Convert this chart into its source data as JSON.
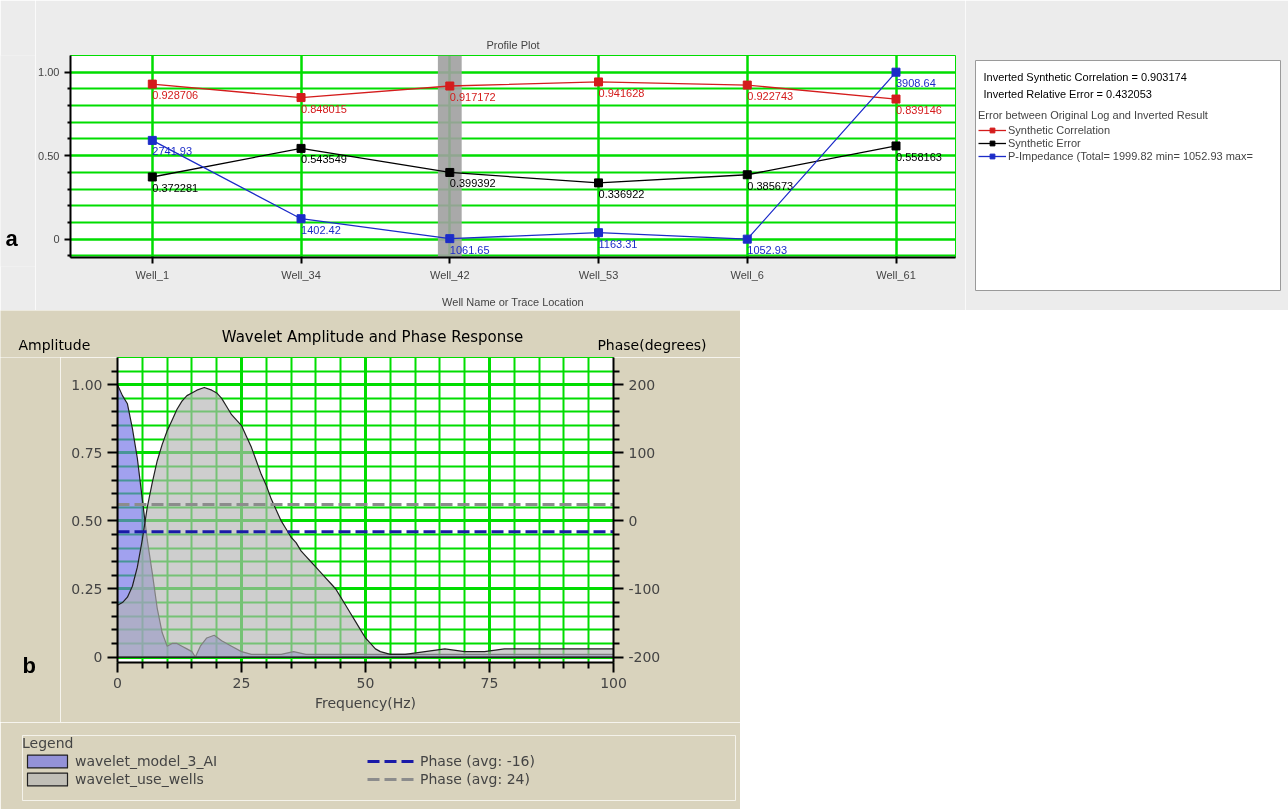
{
  "chart_data": [
    {
      "type": "line",
      "title": "Profile Plot",
      "xlabel": "Well Name or Trace Location",
      "legend_title": "Error between Original Log and Inverted Result",
      "annotations": [
        "Inverted Synthetic Correlation = 0.903174",
        "Inverted Relative Error = 0.432053",
        "a"
      ],
      "categories": [
        "Well_1",
        "Well_34",
        "Well_42",
        "Well_53",
        "Well_6",
        "Well_61"
      ],
      "series": [
        {
          "name": "Synthetic Correlation",
          "color": "#d41c1c",
          "values": [
            0.928706,
            0.848015,
            0.917172,
            0.941628,
            0.922743,
            0.839146
          ]
        },
        {
          "name": "Synthetic Error",
          "color": "#000000",
          "values": [
            0.372281,
            0.543549,
            0.399392,
            0.336922,
            0.385673,
            0.558163
          ]
        },
        {
          "name": "P-Impedance (Total= 1999.82 min= 1052.93 max=",
          "color": "#1c2cc8",
          "axis": "y2",
          "values": [
            2741.93,
            1402.42,
            1061.65,
            1163.31,
            1052.93,
            3908.64
          ]
        }
      ],
      "data_labels": true,
      "ylim": [
        -0.11,
        1.1
      ],
      "yticks": [
        {
          "value": -0.1,
          "label": null
        },
        0,
        {
          "value": 0.1,
          "label": null
        },
        {
          "value": 0.2,
          "label": null
        },
        {
          "value": 0.3,
          "label": null
        },
        {
          "value": 0.4,
          "label": null
        },
        {
          "value": 0.5,
          "label": "0.50"
        },
        {
          "value": 0.6,
          "label": null
        },
        {
          "value": 0.7,
          "label": null
        },
        {
          "value": 0.8,
          "label": null
        },
        {
          "value": 0.9,
          "label": null
        },
        {
          "value": 1,
          "label": "1.00"
        }
      ],
      "y2lim": [
        739,
        4194
      ],
      "bands": [
        {
          "axis": "x",
          "from": "Well_42",
          "to": "Well_42",
          "color": "#a0a0a0"
        }
      ],
      "grid": true,
      "legend": "right",
      "marker": "square"
    },
    {
      "type": "area",
      "title": "Wavelet Amplitude and Phase Response",
      "xlabel": "Frequency(Hz)",
      "ylabel": "Amplitude",
      "y2label": "Phase(degrees)",
      "legend_title": "Legend",
      "annotations": [
        "b"
      ],
      "series": [
        {
          "name": "wavelet_model_3_AI",
          "color": "#6e6ee6",
          "x": [
            0,
            1,
            2,
            3,
            4,
            5,
            6,
            7,
            8,
            9,
            10,
            11,
            12,
            13,
            14,
            15,
            15.7,
            16.7,
            18,
            19.5,
            21,
            23,
            25,
            27,
            30,
            33,
            35.5,
            38,
            41,
            45,
            50,
            60,
            70,
            80,
            90,
            100
          ],
          "values": [
            1.0,
            0.96,
            0.93,
            0.84,
            0.73,
            0.58,
            0.43,
            0.31,
            0.18,
            0.09,
            0.04,
            0.05,
            0.05,
            0.04,
            0.03,
            0.02,
            0.0,
            0.04,
            0.07,
            0.08,
            0.06,
            0.04,
            0.02,
            0.01,
            0.01,
            0.01,
            0.02,
            0.01,
            0.01,
            0.01,
            0.01,
            0.01,
            0.01,
            0.01,
            0.01,
            0.01
          ]
        },
        {
          "name": "wavelet_use_wells",
          "color": "#b4b4b4",
          "x": [
            0,
            1,
            2,
            3,
            4,
            5,
            6,
            7,
            8,
            9,
            10,
            11,
            12,
            13,
            14,
            15,
            16,
            17.5,
            19,
            20,
            21,
            22,
            23,
            24,
            25,
            26,
            27,
            28,
            29,
            30,
            31,
            32,
            33,
            34,
            35,
            36,
            37,
            38,
            39,
            40,
            41,
            42,
            43,
            44,
            45,
            46,
            47,
            48,
            49,
            50,
            51,
            52,
            53,
            55,
            58,
            62,
            66,
            70,
            74,
            78,
            82,
            86,
            90,
            95,
            100
          ],
          "values": [
            0.19,
            0.2,
            0.22,
            0.26,
            0.33,
            0.43,
            0.55,
            0.64,
            0.72,
            0.78,
            0.83,
            0.87,
            0.91,
            0.94,
            0.96,
            0.97,
            0.98,
            0.99,
            0.98,
            0.97,
            0.95,
            0.92,
            0.89,
            0.87,
            0.85,
            0.81,
            0.77,
            0.72,
            0.67,
            0.63,
            0.58,
            0.54,
            0.5,
            0.47,
            0.44,
            0.42,
            0.39,
            0.37,
            0.35,
            0.33,
            0.31,
            0.29,
            0.27,
            0.25,
            0.22,
            0.19,
            0.16,
            0.13,
            0.1,
            0.07,
            0.05,
            0.03,
            0.02,
            0.01,
            0.01,
            0.02,
            0.03,
            0.02,
            0.02,
            0.03,
            0.03,
            0.03,
            0.03,
            0.03,
            0.03
          ]
        }
      ],
      "xlim": [
        0,
        100
      ],
      "xticks": [
        0,
        {
          "value": 5,
          "label": null
        },
        {
          "value": 10,
          "label": null
        },
        {
          "value": 15,
          "label": null
        },
        {
          "value": 20,
          "label": null
        },
        25,
        {
          "value": 30,
          "label": null
        },
        {
          "value": 35,
          "label": null
        },
        {
          "value": 40,
          "label": null
        },
        {
          "value": 45,
          "label": null
        },
        50,
        {
          "value": 55,
          "label": null
        },
        {
          "value": 60,
          "label": null
        },
        {
          "value": 65,
          "label": null
        },
        {
          "value": 70,
          "label": null
        },
        75,
        {
          "value": 80,
          "label": null
        },
        {
          "value": 85,
          "label": null
        },
        {
          "value": 90,
          "label": null
        },
        {
          "value": 95,
          "label": null
        },
        100
      ],
      "ylim": [
        -0.02,
        1.1
      ],
      "yticks": [
        0,
        {
          "value": 0.05,
          "label": null
        },
        {
          "value": 0.1,
          "label": null
        },
        {
          "value": 0.15,
          "label": null
        },
        {
          "value": 0.2,
          "label": null
        },
        0.25,
        {
          "value": 0.3,
          "label": null
        },
        {
          "value": 0.35,
          "label": null
        },
        {
          "value": 0.4,
          "label": null
        },
        {
          "value": 0.45,
          "label": null
        },
        {
          "value": 0.5,
          "label": "0.50"
        },
        {
          "value": 0.55,
          "label": null
        },
        {
          "value": 0.6,
          "label": null
        },
        {
          "value": 0.65,
          "label": null
        },
        {
          "value": 0.7,
          "label": null
        },
        0.75,
        {
          "value": 0.8,
          "label": null
        },
        {
          "value": 0.85,
          "label": null
        },
        {
          "value": 0.9,
          "label": null
        },
        {
          "value": 0.95,
          "label": null
        },
        {
          "value": 1,
          "label": "1.00"
        },
        {
          "value": 1.05,
          "label": null
        }
      ],
      "y2lim": [
        -208,
        240
      ],
      "y2ticks": [
        -200,
        {
          "value": -180,
          "label": null
        },
        {
          "value": -160,
          "label": null
        },
        {
          "value": -140,
          "label": null
        },
        {
          "value": -120,
          "label": null
        },
        -100,
        {
          "value": -80,
          "label": null
        },
        {
          "value": -60,
          "label": null
        },
        {
          "value": -40,
          "label": null
        },
        {
          "value": -20,
          "label": null
        },
        0,
        {
          "value": 20,
          "label": null
        },
        {
          "value": 40,
          "label": null
        },
        {
          "value": 60,
          "label": null
        },
        {
          "value": 80,
          "label": null
        },
        100,
        {
          "value": 120,
          "label": null
        },
        {
          "value": 140,
          "label": null
        },
        {
          "value": 160,
          "label": null
        },
        {
          "value": 180,
          "label": null
        },
        200,
        {
          "value": 220,
          "label": null
        }
      ],
      "ref_lines": [
        {
          "axis": "y2",
          "value": -16,
          "label": "Phase (avg: -16)",
          "color": "#1a1aa8",
          "line_style": "dashed"
        },
        {
          "axis": "y2",
          "value": 24,
          "label": "Phase (avg: 24)",
          "color": "#8c8c8c",
          "line_style": "dashed"
        }
      ],
      "grid": true,
      "legend": "bottom"
    }
  ]
}
